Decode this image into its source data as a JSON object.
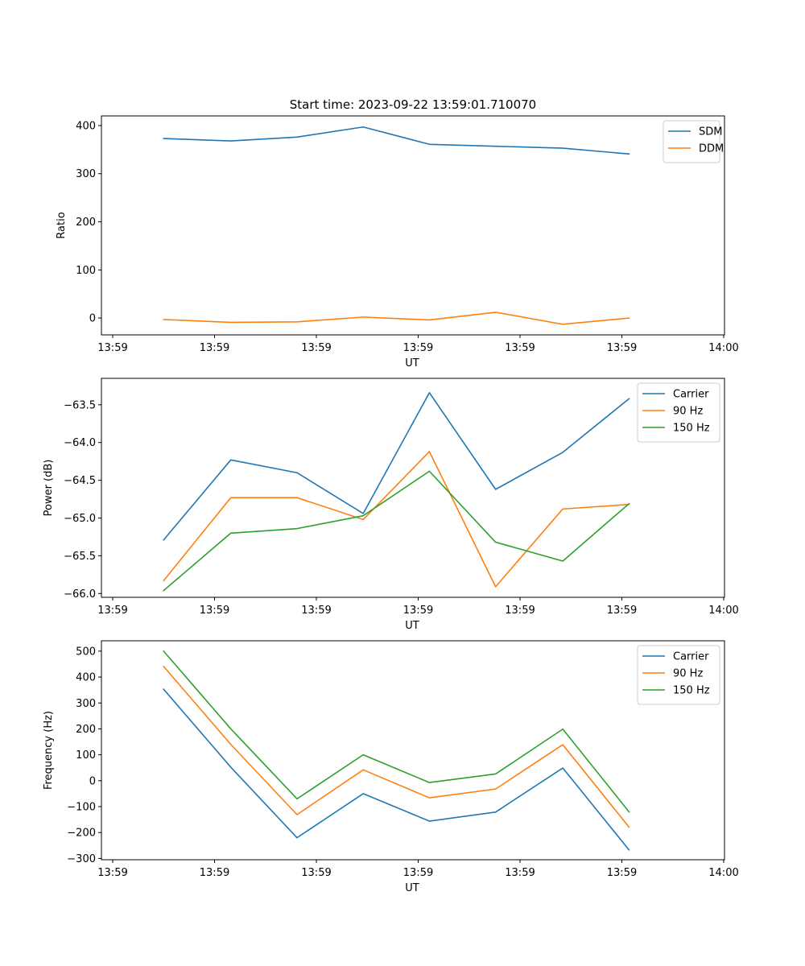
{
  "chart_data": [
    {
      "type": "line",
      "title": "Start time: 2023-09-22 13:59:01.710070",
      "xlabel": "UT",
      "ylabel": "Ratio",
      "xlim": [
        0,
        6
      ],
      "ylim": [
        -35,
        420
      ],
      "yticks": [
        0,
        100,
        200,
        300,
        400
      ],
      "ytick_labels": [
        "0",
        "100",
        "200",
        "300",
        "400"
      ],
      "xticks": [
        0,
        1,
        2,
        3,
        4,
        5,
        6
      ],
      "xtick_labels": [
        "13:59",
        "13:59",
        "13:59",
        "13:59",
        "13:59",
        "13:59",
        "14:00"
      ],
      "x": [
        0.5,
        1.16,
        1.81,
        2.46,
        3.11,
        3.76,
        4.42,
        5.07
      ],
      "legend_position": "upper-right",
      "series": [
        {
          "name": "SDM",
          "color": "#1f77b4",
          "values": [
            373,
            368,
            376,
            397,
            361,
            357,
            353,
            341
          ]
        },
        {
          "name": "DDM",
          "color": "#ff7f0e",
          "values": [
            -3,
            -9,
            -8,
            2,
            -4,
            12,
            -13,
            0
          ]
        }
      ]
    },
    {
      "type": "line",
      "title": "",
      "xlabel": "UT",
      "ylabel": "Power (dB)",
      "xlim": [
        0,
        6
      ],
      "ylim": [
        -66.05,
        -63.15
      ],
      "yticks": [
        -66.0,
        -65.5,
        -65.0,
        -64.5,
        -64.0,
        -63.5
      ],
      "ytick_labels": [
        "−66.0",
        "−65.5",
        "−65.0",
        "−64.5",
        "−64.0",
        "−63.5"
      ],
      "xticks": [
        0,
        1,
        2,
        3,
        4,
        5,
        6
      ],
      "xtick_labels": [
        "13:59",
        "13:59",
        "13:59",
        "13:59",
        "13:59",
        "13:59",
        "14:00"
      ],
      "x": [
        0.5,
        1.16,
        1.81,
        2.46,
        3.11,
        3.76,
        4.42,
        5.07
      ],
      "legend_position": "upper-right",
      "series": [
        {
          "name": "Carrier",
          "color": "#1f77b4",
          "values": [
            -65.29,
            -64.23,
            -64.4,
            -64.94,
            -63.34,
            -64.62,
            -64.13,
            -63.42
          ]
        },
        {
          "name": "90 Hz",
          "color": "#ff7f0e",
          "values": [
            -65.83,
            -64.73,
            -64.73,
            -65.02,
            -64.12,
            -65.91,
            -64.88,
            -64.82
          ]
        },
        {
          "name": "150 Hz",
          "color": "#2ca02c",
          "values": [
            -65.96,
            -65.2,
            -65.14,
            -64.97,
            -64.38,
            -65.32,
            -65.57,
            -64.81
          ]
        }
      ]
    },
    {
      "type": "line",
      "title": "",
      "xlabel": "UT",
      "ylabel": "Frequency (Hz)",
      "xlim": [
        0,
        6
      ],
      "ylim": [
        -305,
        540
      ],
      "yticks": [
        -300,
        -200,
        -100,
        0,
        100,
        200,
        300,
        400,
        500
      ],
      "ytick_labels": [
        "−300",
        "−200",
        "−100",
        "0",
        "100",
        "200",
        "300",
        "400",
        "500"
      ],
      "xticks": [
        0,
        1,
        2,
        3,
        4,
        5,
        6
      ],
      "xtick_labels": [
        "13:59",
        "13:59",
        "13:59",
        "13:59",
        "13:59",
        "13:59",
        "14:00"
      ],
      "x": [
        0.5,
        1.16,
        1.81,
        2.46,
        3.11,
        3.76,
        4.42,
        5.07
      ],
      "legend_position": "upper-right",
      "series": [
        {
          "name": "Carrier",
          "color": "#1f77b4",
          "values": [
            353,
            52,
            -220,
            -50,
            -156,
            -121,
            49,
            -267
          ]
        },
        {
          "name": "90 Hz",
          "color": "#ff7f0e",
          "values": [
            441,
            140,
            -131,
            42,
            -66,
            -32,
            139,
            -179
          ]
        },
        {
          "name": "150 Hz",
          "color": "#2ca02c",
          "values": [
            500,
            200,
            -70,
            100,
            -7,
            26,
            199,
            -120
          ]
        }
      ]
    }
  ]
}
